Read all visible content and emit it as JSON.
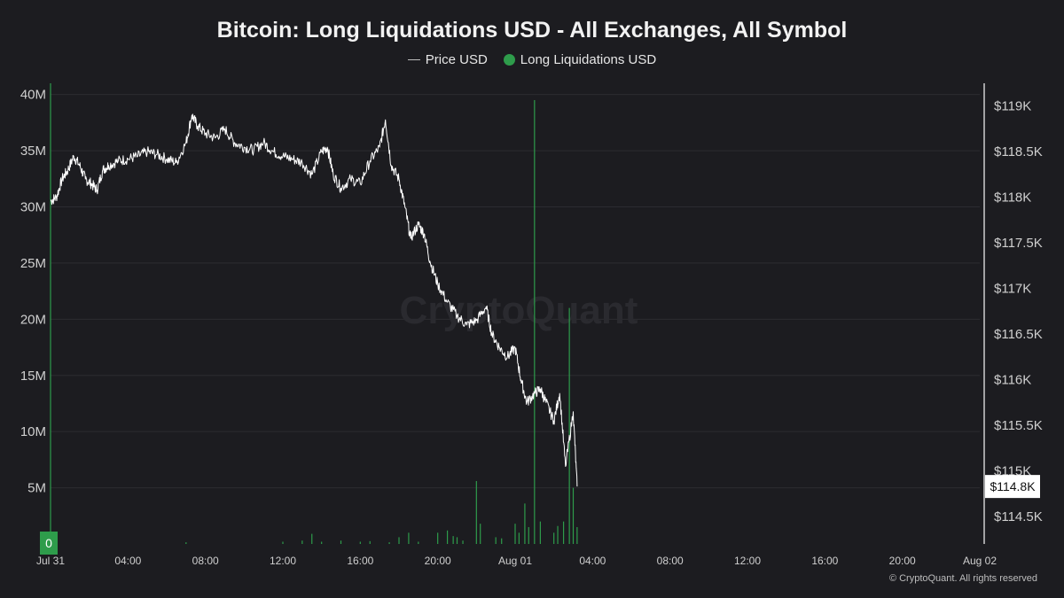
{
  "title": "Bitcoin: Long Liquidations USD - All Exchanges, All Symbol",
  "legend": {
    "price_label": "Price USD",
    "liq_label": "Long Liquidations USD"
  },
  "watermark": "CryptoQuant",
  "footer": "© CryptoQuant. All rights reserved",
  "colors": {
    "background": "#1c1c20",
    "price_line": "#ffffff",
    "liquidation_bar": "#2e9c4b",
    "grid": "#2c2c31"
  },
  "chart_data": {
    "type": "line",
    "x_ticks": [
      "Jul 31",
      "04:00",
      "08:00",
      "12:00",
      "16:00",
      "20:00",
      "Aug 01",
      "04:00",
      "08:00",
      "12:00",
      "16:00",
      "20:00",
      "Aug 02"
    ],
    "x_range_hours": [
      0,
      48
    ],
    "y_left": {
      "label": "Long Liquidations USD",
      "ticks": [
        "0",
        "5M",
        "10M",
        "15M",
        "20M",
        "25M",
        "30M",
        "35M",
        "40M"
      ],
      "range": [
        0,
        41000000
      ]
    },
    "y_right": {
      "label": "Price USD",
      "ticks": [
        "$114.5K",
        "$115K",
        "$115.5K",
        "$116K",
        "$116.5K",
        "$117K",
        "$117.5K",
        "$118K",
        "$118.5K",
        "$119K"
      ],
      "range": [
        114200,
        119250
      ],
      "current_price_label": "$114.8K"
    },
    "left_current_label": "0",
    "series": [
      {
        "name": "Price USD",
        "type": "line",
        "points": [
          [
            0.0,
            117960
          ],
          [
            0.3,
            118000
          ],
          [
            0.6,
            118200
          ],
          [
            0.9,
            118300
          ],
          [
            1.2,
            118450
          ],
          [
            1.5,
            118350
          ],
          [
            1.8,
            118200
          ],
          [
            2.1,
            118150
          ],
          [
            2.4,
            118080
          ],
          [
            2.7,
            118300
          ],
          [
            3.0,
            118350
          ],
          [
            3.5,
            118400
          ],
          [
            4.0,
            118420
          ],
          [
            4.5,
            118450
          ],
          [
            5.0,
            118500
          ],
          [
            5.5,
            118470
          ],
          [
            6.0,
            118420
          ],
          [
            6.5,
            118380
          ],
          [
            7.0,
            118600
          ],
          [
            7.3,
            118900
          ],
          [
            7.6,
            118780
          ],
          [
            8.0,
            118700
          ],
          [
            8.5,
            118650
          ],
          [
            9.0,
            118750
          ],
          [
            9.5,
            118600
          ],
          [
            10.0,
            118550
          ],
          [
            10.5,
            118520
          ],
          [
            11.0,
            118600
          ],
          [
            11.5,
            118500
          ],
          [
            12.0,
            118450
          ],
          [
            12.5,
            118420
          ],
          [
            13.0,
            118380
          ],
          [
            13.5,
            118250
          ],
          [
            14.0,
            118500
          ],
          [
            14.3,
            118550
          ],
          [
            14.6,
            118250
          ],
          [
            15.0,
            118100
          ],
          [
            15.5,
            118200
          ],
          [
            16.0,
            118150
          ],
          [
            16.5,
            118400
          ],
          [
            17.0,
            118550
          ],
          [
            17.3,
            118850
          ],
          [
            17.6,
            118350
          ],
          [
            18.0,
            118200
          ],
          [
            18.3,
            117900
          ],
          [
            18.6,
            117550
          ],
          [
            19.0,
            117700
          ],
          [
            19.3,
            117600
          ],
          [
            19.6,
            117300
          ],
          [
            20.0,
            117050
          ],
          [
            20.5,
            116850
          ],
          [
            21.0,
            116700
          ],
          [
            21.5,
            116600
          ],
          [
            22.0,
            116650
          ],
          [
            22.5,
            116800
          ],
          [
            22.8,
            116500
          ],
          [
            23.2,
            116350
          ],
          [
            23.6,
            116250
          ],
          [
            24.0,
            116350
          ],
          [
            24.3,
            116000
          ],
          [
            24.6,
            115750
          ],
          [
            25.0,
            115850
          ],
          [
            25.3,
            115900
          ],
          [
            25.6,
            115750
          ],
          [
            26.0,
            115550
          ],
          [
            26.3,
            115850
          ],
          [
            26.6,
            115050
          ],
          [
            27.0,
            115650
          ],
          [
            27.2,
            114830
          ]
        ]
      },
      {
        "name": "Long Liquidations USD",
        "type": "bar",
        "points": [
          [
            0.0,
            41000000
          ],
          [
            7.0,
            150000
          ],
          [
            12.0,
            200000
          ],
          [
            13.0,
            300000
          ],
          [
            13.5,
            900000
          ],
          [
            14.0,
            200000
          ],
          [
            15.0,
            300000
          ],
          [
            16.0,
            200000
          ],
          [
            16.5,
            250000
          ],
          [
            17.5,
            150000
          ],
          [
            18.0,
            600000
          ],
          [
            18.5,
            1000000
          ],
          [
            19.0,
            200000
          ],
          [
            20.0,
            1000000
          ],
          [
            20.5,
            1200000
          ],
          [
            20.8,
            700000
          ],
          [
            21.0,
            600000
          ],
          [
            21.3,
            300000
          ],
          [
            22.0,
            5600000
          ],
          [
            22.2,
            1800000
          ],
          [
            23.0,
            600000
          ],
          [
            23.3,
            500000
          ],
          [
            24.0,
            1800000
          ],
          [
            24.2,
            1000000
          ],
          [
            24.5,
            3600000
          ],
          [
            24.7,
            1500000
          ],
          [
            25.0,
            39500000
          ],
          [
            25.3,
            2000000
          ],
          [
            26.0,
            1000000
          ],
          [
            26.2,
            1600000
          ],
          [
            26.5,
            2000000
          ],
          [
            26.8,
            21000000
          ],
          [
            27.0,
            5000000
          ],
          [
            27.2,
            1500000
          ]
        ]
      }
    ],
    "grid": true,
    "legend_position": "top-center"
  }
}
